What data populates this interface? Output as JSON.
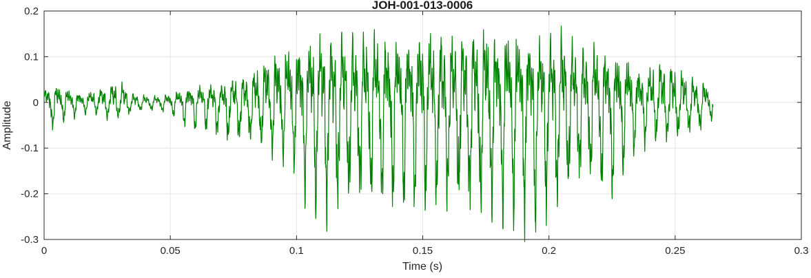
{
  "chart_data": {
    "type": "line",
    "title": "JOH-001-013-0006",
    "xlabel": "Time (s)",
    "ylabel": "Amplitude",
    "xlim": [
      0,
      0.3
    ],
    "ylim": [
      -0.3,
      0.2
    ],
    "xticks": [
      0,
      0.05,
      0.1,
      0.15,
      0.2,
      0.25,
      0.3
    ],
    "xtick_labels": [
      "0",
      "0.05",
      "0.1",
      "0.15",
      "0.2",
      "0.25",
      "0.3"
    ],
    "yticks": [
      -0.3,
      -0.2,
      -0.1,
      0,
      0.1,
      0.2
    ],
    "ytick_labels": [
      "-0.3",
      "-0.2",
      "-0.1",
      "0",
      "0.1",
      "0.2"
    ],
    "grid": true,
    "legend": "none",
    "line_color": "#008000",
    "line_width": 1.2,
    "axis_color": "#262626",
    "grid_color": "#e6e6e6",
    "background": "#ffffff",
    "signal": {
      "kind": "speech-like waveform, amplitude envelope over time",
      "duration_s": 0.265,
      "fundamental_hz": 230,
      "envelope_t": [
        0,
        0.005,
        0.01,
        0.015,
        0.02,
        0.025,
        0.03,
        0.035,
        0.04,
        0.045,
        0.05,
        0.055,
        0.06,
        0.065,
        0.07,
        0.075,
        0.08,
        0.085,
        0.09,
        0.095,
        0.1,
        0.105,
        0.11,
        0.115,
        0.12,
        0.125,
        0.13,
        0.135,
        0.14,
        0.145,
        0.15,
        0.155,
        0.16,
        0.165,
        0.17,
        0.175,
        0.18,
        0.185,
        0.19,
        0.195,
        0.2,
        0.205,
        0.21,
        0.215,
        0.22,
        0.225,
        0.23,
        0.235,
        0.24,
        0.245,
        0.25,
        0.255,
        0.26,
        0.265
      ],
      "envelope_pos": [
        0.03,
        0.04,
        0.03,
        0.02,
        0.03,
        0.04,
        0.05,
        0.02,
        0.015,
        0.015,
        0.02,
        0.03,
        0.04,
        0.04,
        0.04,
        0.05,
        0.06,
        0.08,
        0.12,
        0.13,
        0.14,
        0.15,
        0.16,
        0.15,
        0.15,
        0.14,
        0.15,
        0.15,
        0.15,
        0.16,
        0.17,
        0.16,
        0.15,
        0.15,
        0.16,
        0.17,
        0.16,
        0.17,
        0.16,
        0.15,
        0.15,
        0.16,
        0.13,
        0.13,
        0.13,
        0.11,
        0.11,
        0.08,
        0.08,
        0.1,
        0.08,
        0.06,
        0.05,
        0.03
      ],
      "envelope_neg": [
        0.06,
        0.04,
        0.03,
        0.02,
        0.02,
        0.03,
        0.03,
        0.02,
        0.015,
        0.015,
        0.02,
        0.04,
        0.05,
        0.05,
        0.06,
        0.08,
        0.07,
        0.08,
        0.09,
        0.1,
        0.12,
        0.19,
        0.21,
        0.2,
        0.19,
        0.18,
        0.19,
        0.18,
        0.19,
        0.18,
        0.19,
        0.18,
        0.19,
        0.19,
        0.2,
        0.21,
        0.2,
        0.2,
        0.21,
        0.22,
        0.2,
        0.19,
        0.15,
        0.14,
        0.16,
        0.17,
        0.12,
        0.08,
        0.07,
        0.07,
        0.07,
        0.06,
        0.05,
        0.03
      ]
    }
  }
}
